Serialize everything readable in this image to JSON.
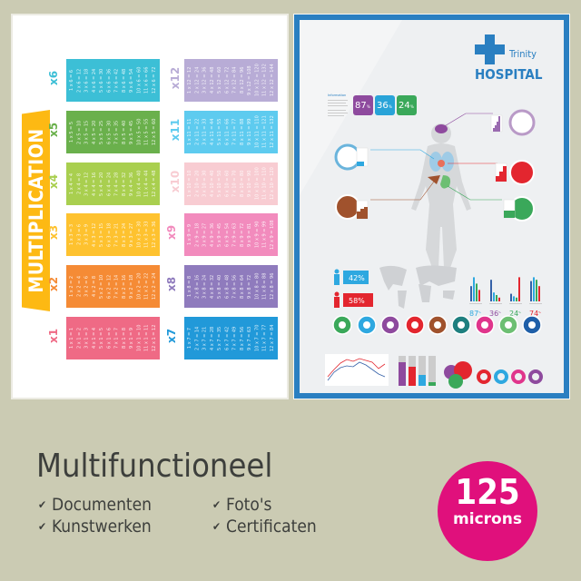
{
  "left_poster": {
    "title": "MULTIPLICATION",
    "tables": [
      {
        "factor": 1,
        "label": "x1",
        "color": "#ef6a85"
      },
      {
        "factor": 2,
        "label": "x2",
        "color": "#f58b35"
      },
      {
        "factor": 3,
        "label": "x3",
        "color": "#fec22f"
      },
      {
        "factor": 4,
        "label": "x4",
        "color": "#a9cf4f"
      },
      {
        "factor": 5,
        "label": "x5",
        "color": "#6ab04c"
      },
      {
        "factor": 6,
        "label": "x6",
        "color": "#3cbfd6"
      },
      {
        "factor": 7,
        "label": "x7",
        "color": "#2199d9"
      },
      {
        "factor": 8,
        "label": "x8",
        "color": "#8f7bbd"
      },
      {
        "factor": 9,
        "label": "x9",
        "color": "#f28bbd"
      },
      {
        "factor": 10,
        "label": "x10",
        "color": "#f8ccd2"
      },
      {
        "factor": 11,
        "label": "x11",
        "color": "#5ecbef"
      },
      {
        "factor": 12,
        "label": "x12",
        "color": "#b8acd6"
      }
    ]
  },
  "right_poster": {
    "brand_small": "Trinity",
    "brand_large": "HOSPITAL",
    "brand_color": "#2a7fc1",
    "info_heading": "Information",
    "stat_boxes": [
      {
        "value": "87",
        "unit": "%",
        "color": "#8e4a9e"
      },
      {
        "value": "36",
        "unit": "%",
        "color": "#29a3d8"
      },
      {
        "value": "24",
        "unit": "%",
        "color": "#3aa85a"
      }
    ],
    "gender": [
      {
        "icon": "male-icon",
        "value": "42%",
        "color": "#2ea8e0"
      },
      {
        "icon": "female-icon",
        "value": "58%",
        "color": "#e3262f"
      }
    ],
    "bar_groups": [
      {
        "label": "87",
        "unit": "%",
        "color": "#2ea8e0",
        "values": [
          60,
          95,
          70,
          45
        ]
      },
      {
        "label": "36",
        "unit": "%",
        "color": "#8e4a9e",
        "values": [
          85,
          35,
          25,
          15
        ]
      },
      {
        "label": "24",
        "unit": "%",
        "color": "#3aa85a",
        "values": [
          30,
          20,
          15,
          95
        ]
      },
      {
        "label": "74",
        "unit": "%",
        "color": "#e3262f",
        "values": [
          80,
          95,
          85,
          60
        ]
      }
    ],
    "organ_icons": [
      {
        "icon": "stomach-icon",
        "color": "#3aa85a"
      },
      {
        "icon": "lungs-icon",
        "color": "#2ea8e0"
      },
      {
        "icon": "brain-icon",
        "color": "#8e4a9e"
      },
      {
        "icon": "heart-icon",
        "color": "#e3262f"
      },
      {
        "icon": "liver-icon",
        "color": "#a0522d"
      },
      {
        "icon": "tooth-icon",
        "color": "#1e7f7f"
      },
      {
        "icon": "heart-love-icon",
        "color": "#e0358c"
      },
      {
        "icon": "sleep-icon",
        "color": "#6dbf73"
      },
      {
        "icon": "apple-icon",
        "color": "#1f5fa8"
      }
    ]
  },
  "footer": {
    "headline": "Multifunctioneel",
    "features": [
      "Documenten",
      "Kunstwerken",
      "Foto's",
      "Certificaten"
    ],
    "check_icon": "✔",
    "badge": {
      "number": "125",
      "unit": "microns",
      "color": "#e0107c"
    }
  }
}
